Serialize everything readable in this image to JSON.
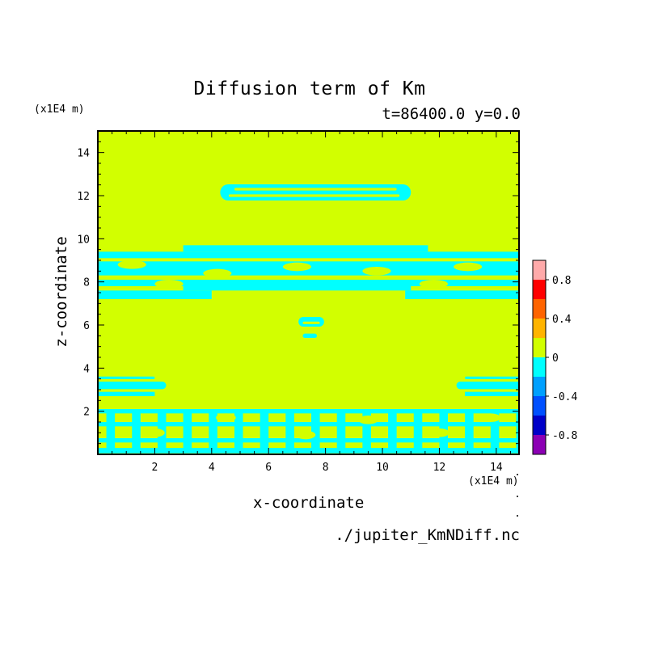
{
  "chart_data": {
    "type": "heatmap",
    "title": "Diffusion term of Km",
    "subtitle": "t=86400.0 y=0.0",
    "xlabel": "x-coordinate",
    "ylabel": "z-coordinate",
    "x_unit": "(x1E4 m)",
    "y_unit": "(x1E4 m)",
    "file": "./jupiter_KmNDiff.nc",
    "xlim": [
      0,
      14.8
    ],
    "ylim": [
      0,
      15
    ],
    "x_ticks": [
      2,
      4,
      6,
      8,
      10,
      12,
      14
    ],
    "y_ticks": [
      2,
      4,
      6,
      8,
      10,
      12,
      14
    ],
    "x_tick_labels": [
      "2",
      "4",
      "6",
      "8",
      "10",
      "12",
      "14"
    ],
    "y_tick_labels": [
      "2",
      "4",
      "6",
      "8",
      "10",
      "12",
      "14"
    ],
    "colorbar": {
      "levels": [
        -1.0,
        -0.8,
        -0.6,
        -0.4,
        -0.2,
        0,
        0.2,
        0.4,
        0.6,
        0.8,
        1.0
      ],
      "colors": [
        "#8c00b4",
        "#0000c8",
        "#0050ff",
        "#00a0ff",
        "#00ffff",
        "#d2ff00",
        "#ffb400",
        "#ff6400",
        "#ff0000",
        "#ffaaaa"
      ],
      "tick_values": [
        -0.8,
        -0.4,
        0,
        0.4,
        0.8
      ],
      "tick_labels": [
        "-0.8",
        "-0.4",
        "0",
        "0.4",
        "0.8"
      ]
    },
    "background_level": "0 to 0.2",
    "pattern_level": "-0.2 to 0",
    "features": [
      {
        "x": [
          4.0,
          11.0
        ],
        "z": [
          11.7,
          12.4
        ]
      },
      {
        "x": [
          0.0,
          14.8
        ],
        "z": [
          7.2,
          9.7
        ]
      },
      {
        "x": [
          6.9,
          8.1
        ],
        "z": [
          5.4,
          6.4
        ]
      },
      {
        "x": [
          0.0,
          2.4
        ],
        "z": [
          2.7,
          3.6
        ]
      },
      {
        "x": [
          12.6,
          14.8
        ],
        "z": [
          2.7,
          3.6
        ]
      },
      {
        "x": [
          0.0,
          14.8
        ],
        "z": [
          0.1,
          2.1
        ]
      }
    ]
  }
}
